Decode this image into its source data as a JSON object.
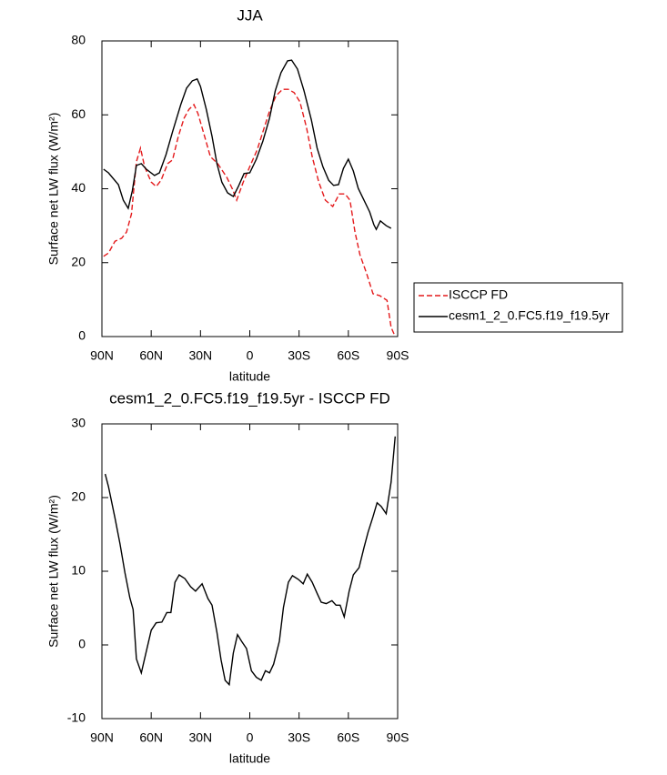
{
  "chart_data": [
    {
      "type": "line",
      "title": "JJA",
      "xlabel": "latitude",
      "ylabel": "Surface net LW flux (W/m²)",
      "xlim": [
        90,
        -90
      ],
      "ylim": [
        0,
        80
      ],
      "xticks": [
        {
          "value": 90,
          "label": "90N"
        },
        {
          "value": 60,
          "label": "60N"
        },
        {
          "value": 30,
          "label": "30N"
        },
        0,
        {
          "value": -30,
          "label": "30S"
        },
        {
          "value": -60,
          "label": "60S"
        },
        {
          "value": -90,
          "label": "90S"
        }
      ],
      "yticks": [
        0,
        20,
        40,
        60,
        80
      ],
      "legend": "right",
      "series": [
        {
          "name": "ISCCP FD",
          "color": "#e41a1c",
          "line_style": "dashed",
          "x": [
            89,
            86,
            82,
            78,
            75,
            72,
            69,
            66.5,
            64,
            60,
            57,
            54,
            50,
            47,
            43.5,
            40,
            37,
            34,
            31.5,
            27.5,
            24,
            19.5,
            14,
            10.5,
            8,
            4,
            0,
            -4.5,
            -8,
            -12,
            -16,
            -20,
            -23.5,
            -27,
            -30.5,
            -34.5,
            -38,
            -42,
            -46,
            -50.5,
            -54.5,
            -58,
            -61,
            -64,
            -67,
            -71,
            -75,
            -79,
            -83.5,
            -86,
            -88
          ],
          "values": [
            21.7,
            22.6,
            25.8,
            26.6,
            28.3,
            33.2,
            47.3,
            51.0,
            46.0,
            41.8,
            40.6,
            42.3,
            46.8,
            47.8,
            54.2,
            59.1,
            61.5,
            62.8,
            60.3,
            54.2,
            48.7,
            46.8,
            43.1,
            39.9,
            36.9,
            41.8,
            46.0,
            50.5,
            55.4,
            61.0,
            65.2,
            66.9,
            66.9,
            66.0,
            63.5,
            56.6,
            48.7,
            41.8,
            36.9,
            35.2,
            38.6,
            38.6,
            36.9,
            28.3,
            22.2,
            17.2,
            11.6,
            11.1,
            9.8,
            2.5,
            0.5
          ]
        },
        {
          "name": "cesm1_2_0.FC5.f19_f19.5yr",
          "color": "#000000",
          "line_style": "solid",
          "x": [
            89,
            86,
            80,
            77,
            74,
            71.5,
            69,
            66,
            63,
            58,
            55,
            51,
            47,
            42,
            38.5,
            35,
            32,
            30,
            26.5,
            23,
            20,
            17,
            13.5,
            10,
            7,
            3.5,
            0,
            -4,
            -8,
            -12,
            -15.5,
            -19,
            -23,
            -25.5,
            -29,
            -33,
            -37.5,
            -41,
            -44.5,
            -48,
            -51,
            -54,
            -57,
            -60,
            -63,
            -66,
            -69.5,
            -73,
            -75.5,
            -77,
            -79.5,
            -83,
            -86
          ],
          "values": [
            45.3,
            44.3,
            41.1,
            36.9,
            34.7,
            39.4,
            46.3,
            46.8,
            45.3,
            43.6,
            44.3,
            49.2,
            55.4,
            62.8,
            67.2,
            69.2,
            69.7,
            67.7,
            61.5,
            54.2,
            46.8,
            41.8,
            38.9,
            37.9,
            40.6,
            44.1,
            44.3,
            48.0,
            52.9,
            59.1,
            66.5,
            71.4,
            74.6,
            74.8,
            72.4,
            66.5,
            58.6,
            51.0,
            46.0,
            42.3,
            40.9,
            41.1,
            45.5,
            48.0,
            44.8,
            40.1,
            36.9,
            33.7,
            30.3,
            29.0,
            31.3,
            30.0,
            29.3
          ]
        }
      ]
    },
    {
      "type": "line",
      "title": "cesm1_2_0.FC5.f19_f19.5yr - ISCCP FD",
      "xlabel": "latitude",
      "ylabel": "Surface net LW flux (W/m²)",
      "xlim": [
        90,
        -90
      ],
      "ylim": [
        -10,
        30
      ],
      "xticks": [
        {
          "value": 90,
          "label": "90N"
        },
        {
          "value": 60,
          "label": "60N"
        },
        {
          "value": 30,
          "label": "30N"
        },
        0,
        {
          "value": -30,
          "label": "30S"
        },
        {
          "value": -60,
          "label": "60S"
        },
        {
          "value": -90,
          "label": "90S"
        }
      ],
      "yticks": [
        -10,
        0,
        10,
        20,
        30
      ],
      "series": [
        {
          "color": "#000000",
          "line_style": "solid",
          "x": [
            88,
            86,
            82,
            79,
            76,
            73,
            71,
            69,
            66,
            63.5,
            60,
            57,
            53.5,
            50.5,
            48,
            45.5,
            43,
            39.5,
            36,
            33,
            29,
            25.5,
            23,
            20,
            17.5,
            15,
            12.5,
            10,
            7.5,
            5,
            2,
            -1,
            -4,
            -7,
            -9.5,
            -12,
            -14.5,
            -18,
            -20.5,
            -23.5,
            -26,
            -29.5,
            -32.5,
            -35,
            -38,
            -41,
            -43.5,
            -46.5,
            -50,
            -52.5,
            -55,
            -57.5,
            -60.5,
            -63,
            -66.5,
            -69.5,
            -72,
            -75,
            -77.5,
            -80,
            -83,
            -86,
            -88.5
          ],
          "values": [
            23.2,
            21.5,
            17.2,
            13.7,
            9.8,
            6.4,
            4.8,
            -1.9,
            -3.8,
            -1.4,
            2.0,
            3.0,
            3.1,
            4.4,
            4.4,
            8.5,
            9.5,
            9.0,
            7.9,
            7.3,
            8.3,
            6.3,
            5.4,
            1.7,
            -2.0,
            -4.8,
            -5.4,
            -1.1,
            1.4,
            0.5,
            -0.5,
            -3.5,
            -4.4,
            -4.8,
            -3.5,
            -3.8,
            -2.6,
            0.5,
            5.1,
            8.5,
            9.4,
            8.9,
            8.3,
            9.6,
            8.5,
            7.0,
            5.8,
            5.6,
            6.0,
            5.4,
            5.4,
            3.8,
            7.3,
            9.5,
            10.5,
            13.2,
            15.3,
            17.4,
            19.3,
            18.8,
            17.8,
            22.1,
            28.3
          ]
        }
      ]
    }
  ]
}
